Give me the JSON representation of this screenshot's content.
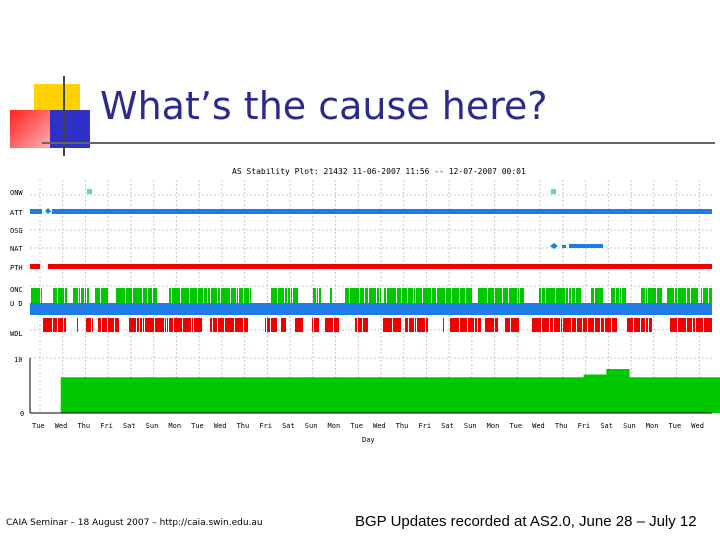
{
  "slide": {
    "title": "What’s the cause here?",
    "footer_left": "CAIA Seminar – 18 August 2007 – http://caia.swin.edu.au",
    "footer_right": "BGP Updates recorded at AS2.0, June 28 – July 12"
  },
  "colors": {
    "title": "#2b2b8c",
    "blue": "#1e7ce6",
    "red": "#f00000",
    "green": "#00c800",
    "cyan": "#40e0e0",
    "grid": "#c8c8c8"
  },
  "plot": {
    "title": "AS Stability Plot: 21432  11-06-2007 11:56 -- 12-07-2007 00:01",
    "xlabel": "Day",
    "row_labels": [
      "ONW",
      "ATT",
      "OSG",
      "NAT",
      "PTH",
      "ONC",
      "U D",
      "WDL"
    ],
    "y_axis": {
      "max_label": "10",
      "zero_label": "0"
    },
    "day_labels": [
      "Tue",
      "Wed",
      "Thu",
      "Fri",
      "Sat",
      "Sun",
      "Mon",
      "Tue",
      "Wed",
      "Thu",
      "Fri",
      "Sat",
      "Sun",
      "Mon",
      "Tue",
      "Wed",
      "Thu",
      "Fri",
      "Sat",
      "Sun",
      "Mon",
      "Tue",
      "Wed",
      "Thu",
      "Fri",
      "Sat",
      "Sun",
      "Mon",
      "Tue",
      "Wed"
    ]
  },
  "chart_data": {
    "type": "area",
    "title": "AS Stability Plot: 21432  11-06-2007 11:56 -- 12-07-2007 00:01",
    "xlabel": "Day",
    "ylabel": "",
    "ylim": [
      0,
      10
    ],
    "grid": true,
    "categories": [
      "Tue",
      "Wed",
      "Thu",
      "Fri",
      "Sat",
      "Sun",
      "Mon",
      "Tue",
      "Wed",
      "Thu",
      "Fri",
      "Sat",
      "Sun",
      "Mon",
      "Tue",
      "Wed",
      "Thu",
      "Fri",
      "Sat",
      "Sun",
      "Mon",
      "Tue",
      "Wed",
      "Thu",
      "Fri",
      "Sat",
      "Sun",
      "Mon",
      "Tue",
      "Wed"
    ],
    "series": [
      {
        "name": "",
        "values": [
          0,
          6.5,
          6.5,
          6.5,
          6.5,
          6.5,
          6.5,
          6.5,
          6.5,
          6.5,
          6.5,
          6.5,
          6.5,
          6.5,
          6.5,
          6.5,
          6.5,
          6.5,
          6.5,
          6.5,
          6.5,
          6.5,
          6.5,
          6.5,
          7,
          8,
          6.5,
          6.5,
          6.5,
          6.5
        ]
      }
    ]
  }
}
